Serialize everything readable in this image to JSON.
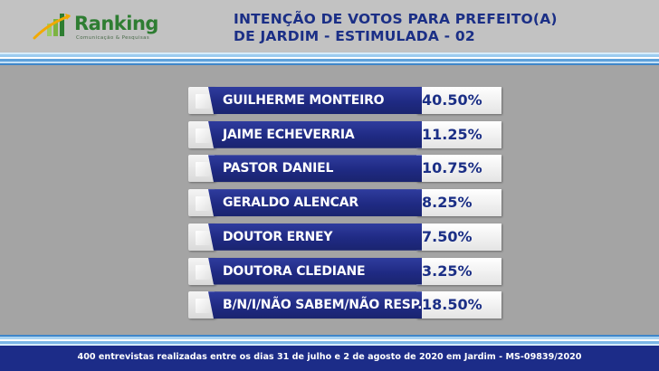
{
  "brand": {
    "name": "Ranking",
    "tagline": "Comunicação & Pesquisas",
    "color": "#2e7d32"
  },
  "header": {
    "title_line1": "INTENÇÃO DE VOTOS PARA PREFEITO(A)",
    "title_line2": "DE JARDIM - ESTIMULADA - 02"
  },
  "chart_data": {
    "type": "bar",
    "title": "INTENÇÃO DE VOTOS PARA PREFEITO(A) DE JARDIM - ESTIMULADA - 02",
    "categories": [
      "GUILHERME MONTEIRO",
      "JAIME ECHEVERRIA",
      "PASTOR DANIEL",
      "GERALDO ALENCAR",
      "DOUTOR ERNEY",
      "DOUTORA CLEDIANE",
      "B/N/I/NÃO SABEM/NÃO RESP."
    ],
    "values": [
      40.5,
      11.25,
      10.75,
      8.25,
      7.5,
      3.25,
      18.5
    ],
    "value_labels": [
      "40.50%",
      "11.25%",
      "10.75%",
      "8.25%",
      "7.50%",
      "3.25%",
      "18.50%"
    ],
    "unit": "%",
    "colors": {
      "bar": "#1f2a83",
      "value_text": "#1b2f86",
      "value_box": "#f2f2f2"
    }
  },
  "footer": {
    "text": "400 entrevistas realizadas entre os dias 31 de julho e 2 de agosto de 2020 em Jardim -  MS-09839/2020"
  },
  "colors": {
    "background": "#a4a4a4",
    "header_band": "#c2c2c2",
    "title": "#1b2f86",
    "stripe_light": "#aad4f2",
    "stripe_dark": "#3f86c9",
    "footer_bg": "#1c2c88"
  }
}
